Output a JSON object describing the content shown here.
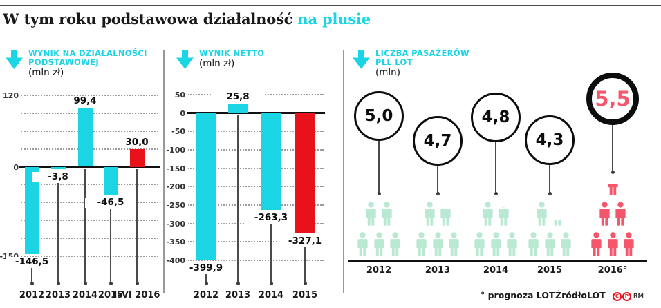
{
  "title": {
    "black": "W tym roku podstawowa działalność",
    "accent": " na plusie"
  },
  "colors": {
    "cyan": "#1bd4e4",
    "red": "#e9111a",
    "pink": "#f4566b",
    "mint": "#b9e8d3",
    "ink": "#111111",
    "grid": "#9b9b9b",
    "stem": "#4a4a4a"
  },
  "chart_data": [
    {
      "type": "bar",
      "title_lines": [
        "WYNIK NA DZIAŁALNOŚCI",
        "PODSTAWOWEJ"
      ],
      "unit": "(mln zł)",
      "categories": [
        "2012",
        "2013",
        "2014",
        "2015",
        "I–VI 2016"
      ],
      "values": [
        -146.5,
        -3.8,
        99.4,
        -46.5,
        30.0
      ],
      "value_labels": [
        "-146,5",
        "-3,8",
        "99,4",
        "-46,5",
        "30,0"
      ],
      "bar_colors": [
        "cyan",
        "cyan",
        "cyan",
        "cyan",
        "red"
      ],
      "ylim": [
        -150,
        120
      ],
      "grid_step": 30,
      "axis_labels": [
        "120",
        "0",
        "-150"
      ],
      "axis_label_values": [
        120,
        0,
        -150
      ],
      "grid": "dotted horizontal"
    },
    {
      "type": "bar",
      "title_lines": [
        "WYNIK NETTO"
      ],
      "unit": "(mln zł)",
      "categories": [
        "2012",
        "2013",
        "2014",
        "2015"
      ],
      "values": [
        -399.9,
        25.8,
        -263.3,
        -327.1
      ],
      "value_labels": [
        "-399,9",
        "25,8",
        "-263,3",
        "-327,1"
      ],
      "bar_colors": [
        "cyan",
        "cyan",
        "cyan",
        "red"
      ],
      "ylim": [
        -400,
        50
      ],
      "grid_step": 50,
      "axis_labels": [
        "50",
        "0",
        "-50",
        "-100",
        "-150",
        "-200",
        "-250",
        "-300",
        "-350",
        "-400"
      ],
      "axis_label_values": [
        50,
        0,
        -50,
        -100,
        -150,
        -200,
        -250,
        -300,
        -350,
        -400
      ],
      "grid": "dotted horizontal"
    },
    {
      "type": "pictogram",
      "title_lines": [
        "LICZBA PASAŻERÓW",
        "PLL LOT"
      ],
      "unit": "(mln)",
      "categories": [
        "2012",
        "2013",
        "2014",
        "2015",
        "2016°"
      ],
      "values": [
        5.0,
        4.7,
        4.8,
        4.3,
        5.5
      ],
      "value_labels": [
        "5,0",
        "4,7",
        "4,8",
        "4,3",
        "5,5"
      ],
      "highlight_index": 4,
      "icon_rows": [
        [
          [
            1,
            1
          ],
          [
            1,
            1,
            1
          ]
        ],
        [
          [
            1,
            0.7
          ],
          [
            1,
            1,
            1
          ]
        ],
        [
          [
            1,
            0.8
          ],
          [
            1,
            1,
            1
          ]
        ],
        [
          [
            1,
            0.3
          ],
          [
            1,
            1,
            1
          ]
        ],
        [
          [
            0.5
          ],
          [
            1,
            1
          ],
          [
            1,
            1,
            1
          ]
        ]
      ]
    }
  ],
  "footer": {
    "note": "° prognoza LOT",
    "source_label": "Źródło:",
    "source_value": "LOT",
    "badges": [
      "C",
      "P"
    ],
    "credit": "RM"
  }
}
